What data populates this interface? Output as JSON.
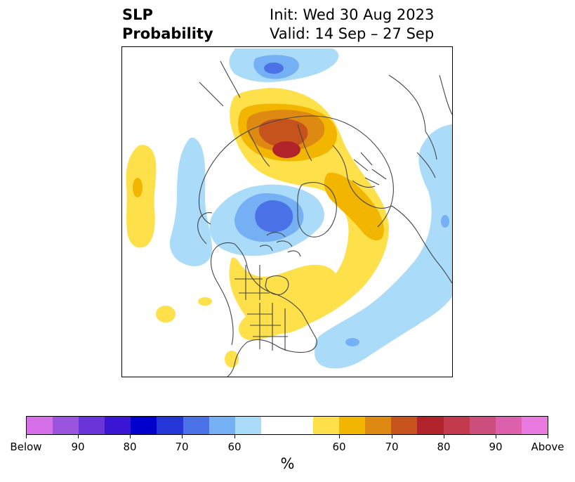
{
  "title": {
    "left_line1": "SLP",
    "left_line2": "Probability",
    "right_line1": "Init: Wed 30 Aug 2023",
    "right_line2": "Valid: 14 Sep – 27 Sep"
  },
  "colorbar": {
    "colors": [
      "#d670e8",
      "#9a54de",
      "#6a35d8",
      "#3a16d4",
      "#0000cc",
      "#2436d8",
      "#4a72e6",
      "#76b0f4",
      "#aadcfa",
      "#ffffff",
      "#fde04a",
      "#f2b600",
      "#de8a12",
      "#c6521c",
      "#b0232a",
      "#c23a4c",
      "#cc4e7c",
      "#dc60ac",
      "#e87ae0"
    ],
    "tick_labels": [
      "Below",
      "90",
      "80",
      "70",
      "60",
      "60",
      "70",
      "80",
      "90",
      "Above"
    ],
    "unit": "%"
  }
}
